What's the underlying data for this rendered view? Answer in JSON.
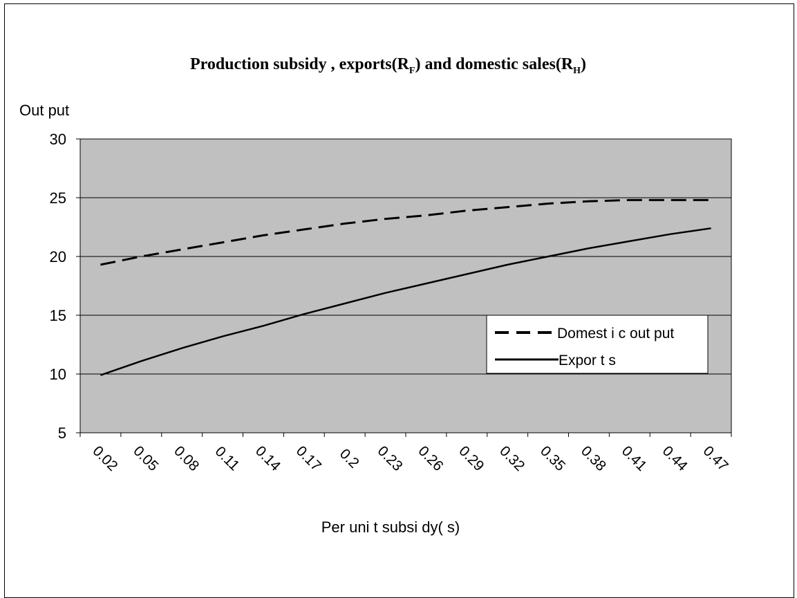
{
  "chart_data": {
    "type": "line",
    "title_parts": {
      "main": "Production subsidy , exports",
      "exports_symbol": "R",
      "exports_sub": "F",
      "middle": " and domestic sales",
      "domestic_symbol": "R",
      "domestic_sub": "H"
    },
    "ylabel": "Out put",
    "xlabel": "Per  uni t  subsi dy( s)",
    "ylim": [
      5,
      30
    ],
    "yticks": [
      5,
      10,
      15,
      20,
      25,
      30
    ],
    "grid": true,
    "legend_position": "right",
    "x": [
      "0.02",
      "0.05",
      "0.08",
      "0.11",
      "0.14",
      "0.17",
      "0.2",
      "0.23",
      "0.26",
      "0.29",
      "0.32",
      "0.35",
      "0.38",
      "0.41",
      "0.44",
      "0.47"
    ],
    "series": [
      {
        "name": "Domest i c  out put",
        "style": "dashed",
        "values": [
          19.3,
          20.0,
          20.6,
          21.2,
          21.8,
          22.3,
          22.8,
          23.2,
          23.5,
          23.9,
          24.2,
          24.5,
          24.7,
          24.8,
          24.8,
          24.8
        ]
      },
      {
        "name": "Expor t s",
        "style": "solid",
        "values": [
          9.9,
          11.1,
          12.2,
          13.2,
          14.1,
          15.1,
          16.0,
          16.9,
          17.7,
          18.5,
          19.3,
          20.0,
          20.7,
          21.3,
          21.9,
          22.4
        ]
      }
    ]
  },
  "colors": {
    "plot_bg": "#c0c0c0",
    "line": "#000000",
    "grid": "#000000"
  }
}
